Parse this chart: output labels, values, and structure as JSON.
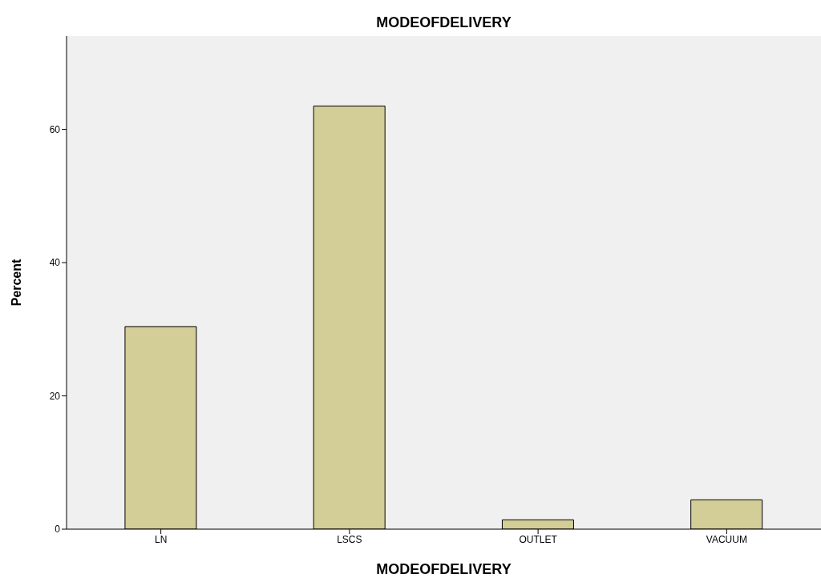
{
  "chart_data": {
    "type": "bar",
    "title": "MODEOFDELIVERY",
    "xlabel": "MODEOFDELIVERY",
    "ylabel": "Percent",
    "categories": [
      "LN",
      "LSCS",
      "OUTLET",
      "VACUUM"
    ],
    "values": [
      30.4,
      63.5,
      1.4,
      4.4
    ],
    "color": "#d3ce97",
    "ylim": [
      0,
      74
    ],
    "yticks": [
      0,
      20,
      40,
      60
    ],
    "grid": false
  }
}
